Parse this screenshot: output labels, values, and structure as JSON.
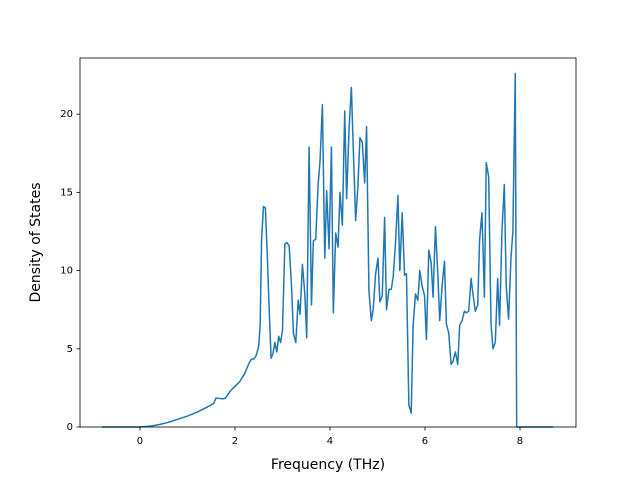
{
  "chart_data": {
    "type": "line",
    "xlabel": "Frequency (THz)",
    "ylabel": "Density of States",
    "xlim": [
      -1.263,
      9.179
    ],
    "ylim": [
      0,
      23.59
    ],
    "xticks": [
      0,
      2,
      4,
      6,
      8
    ],
    "yticks": [
      0,
      5,
      10,
      15,
      20
    ],
    "series": [
      {
        "color": "#1f77b4",
        "x": [
          -0.8,
          0,
          0.2,
          0.4,
          0.6,
          0.8,
          1.0,
          1.2,
          1.4,
          1.55,
          1.6,
          1.75,
          1.8,
          1.9,
          2.0,
          2.1,
          2.2,
          2.3,
          2.35,
          2.4,
          2.45,
          2.5,
          2.53,
          2.56,
          2.6,
          2.64,
          2.68,
          2.72,
          2.76,
          2.8,
          2.84,
          2.88,
          2.92,
          2.96,
          3.0,
          3.05,
          3.09,
          3.14,
          3.19,
          3.23,
          3.28,
          3.33,
          3.37,
          3.42,
          3.47,
          3.51,
          3.56,
          3.61,
          3.65,
          3.7,
          3.75,
          3.79,
          3.84,
          3.89,
          3.93,
          3.98,
          4.03,
          4.07,
          4.12,
          4.17,
          4.21,
          4.26,
          4.31,
          4.35,
          4.4,
          4.45,
          4.49,
          4.54,
          4.59,
          4.63,
          4.68,
          4.73,
          4.77,
          4.82,
          4.87,
          4.91,
          4.96,
          5.01,
          5.05,
          5.1,
          5.15,
          5.19,
          5.24,
          5.29,
          5.33,
          5.38,
          5.43,
          5.47,
          5.52,
          5.57,
          5.61,
          5.66,
          5.71,
          5.75,
          5.8,
          5.85,
          5.89,
          5.94,
          5.99,
          6.03,
          6.08,
          6.13,
          6.17,
          6.22,
          6.27,
          6.31,
          6.36,
          6.41,
          6.45,
          6.5,
          6.55,
          6.59,
          6.64,
          6.69,
          6.73,
          6.78,
          6.83,
          6.87,
          6.92,
          6.97,
          7.01,
          7.06,
          7.11,
          7.15,
          7.2,
          7.25,
          7.29,
          7.34,
          7.39,
          7.43,
          7.48,
          7.53,
          7.57,
          7.62,
          7.67,
          7.71,
          7.76,
          7.81,
          7.85,
          7.9,
          7.93,
          8.7
        ],
        "values": [
          0,
          0,
          0.05,
          0.15,
          0.3,
          0.5,
          0.7,
          0.95,
          1.25,
          1.5,
          1.85,
          1.8,
          1.85,
          2.3,
          2.6,
          2.9,
          3.4,
          4.1,
          4.35,
          4.35,
          4.6,
          5.2,
          6.5,
          12,
          14.1,
          14,
          11,
          7.5,
          4.4,
          4.7,
          5.4,
          4.8,
          5.8,
          5.4,
          6.2,
          11.7,
          11.8,
          11.6,
          9,
          6,
          5.4,
          8.1,
          7.2,
          10.4,
          8.5,
          5.7,
          17.9,
          7.8,
          11.9,
          12,
          15.5,
          17,
          20.6,
          10.8,
          15.1,
          11.4,
          17.9,
          7.3,
          12.4,
          11.5,
          15,
          12.9,
          20.2,
          14.6,
          19,
          21.7,
          17.8,
          13.2,
          15.5,
          18.5,
          18.2,
          15.6,
          19.2,
          8.7,
          6.8,
          7.5,
          9.8,
          10.8,
          8,
          8.4,
          13.4,
          7.5,
          8.8,
          8.8,
          9.6,
          11.8,
          14.8,
          10,
          13.7,
          9.7,
          9.8,
          1.4,
          0.9,
          6.5,
          8.5,
          8.1,
          10,
          9,
          8.4,
          5.6,
          11.3,
          10.5,
          8.3,
          12.8,
          9.8,
          6.8,
          9,
          10.6,
          6.6,
          6,
          4,
          4.2,
          4.8,
          4,
          6.5,
          6.8,
          7.4,
          7.3,
          7.4,
          9.5,
          8.5,
          7.4,
          7.8,
          12,
          13.7,
          8.3,
          16.9,
          16,
          6.6,
          5,
          5.4,
          9.5,
          6.5,
          12.5,
          15.5,
          9,
          6.9,
          10.8,
          12.5,
          22.6,
          0,
          0
        ]
      }
    ]
  }
}
